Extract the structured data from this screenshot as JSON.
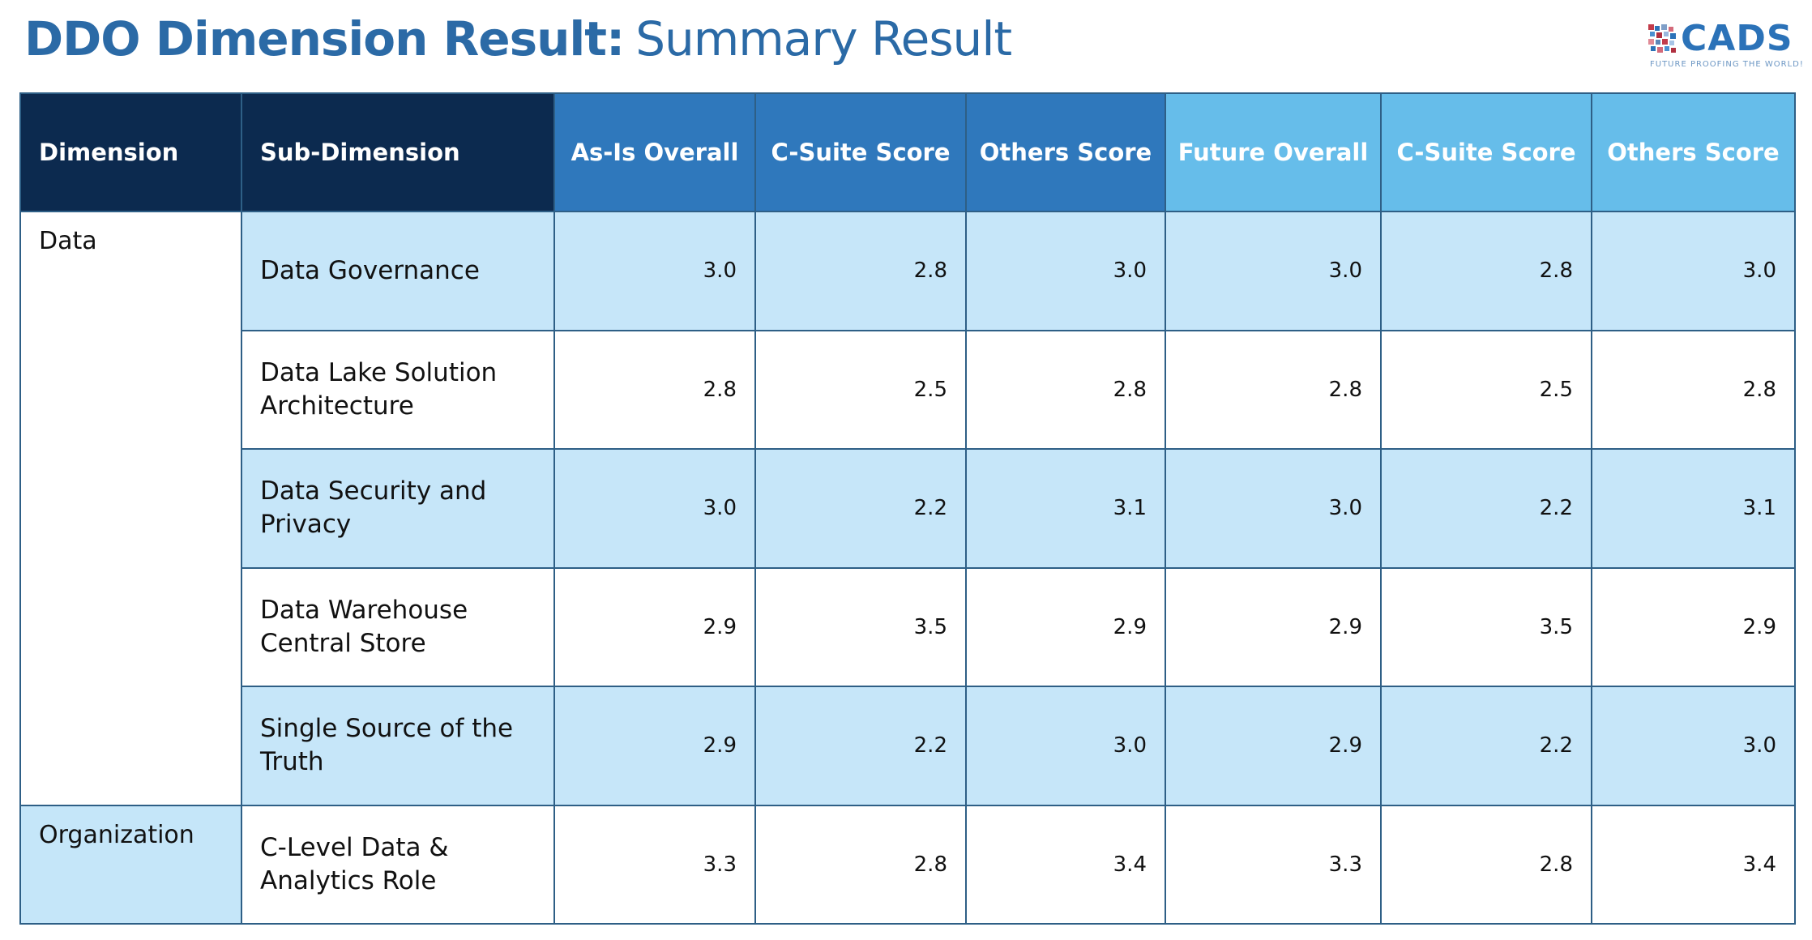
{
  "header": {
    "title_bold": "DDO Dimension Result:",
    "title_light": "Summary Result"
  },
  "logo": {
    "name": "CADS",
    "tagline": "FUTURE PROOFING THE WORLD!"
  },
  "table": {
    "columns": [
      "Dimension",
      "Sub-Dimension",
      "As-Is Overall",
      "C-Suite Score",
      "Others Score",
      "Future Overall",
      "C-Suite Score",
      "Others Score"
    ],
    "groups": [
      {
        "dimension": "Data",
        "rows": [
          {
            "sub": "Data Governance",
            "scores": [
              "3.0",
              "2.8",
              "3.0",
              "3.0",
              "2.8",
              "3.0"
            ]
          },
          {
            "sub": "Data Lake Solution Architecture",
            "scores": [
              "2.8",
              "2.5",
              "2.8",
              "2.8",
              "2.5",
              "2.8"
            ]
          },
          {
            "sub": "Data Security and Privacy",
            "scores": [
              "3.0",
              "2.2",
              "3.1",
              "3.0",
              "2.2",
              "3.1"
            ]
          },
          {
            "sub": "Data Warehouse Central Store",
            "scores": [
              "2.9",
              "3.5",
              "2.9",
              "2.9",
              "3.5",
              "2.9"
            ]
          },
          {
            "sub": "Single Source of the Truth",
            "scores": [
              "2.9",
              "2.2",
              "3.0",
              "2.9",
              "2.2",
              "3.0"
            ]
          }
        ]
      },
      {
        "dimension": "Organization",
        "rows": [
          {
            "sub": "C-Level Data & Analytics Role",
            "scores": [
              "3.3",
              "2.8",
              "3.4",
              "3.3",
              "2.8",
              "3.4"
            ]
          }
        ]
      }
    ]
  },
  "colors": {
    "title": "#2b6aa6",
    "header_dark": "#0c2a4f",
    "header_mid": "#2f78bc",
    "header_light": "#66bdea",
    "row_shade": "#c6e6f9",
    "border": "#2e5f86"
  }
}
